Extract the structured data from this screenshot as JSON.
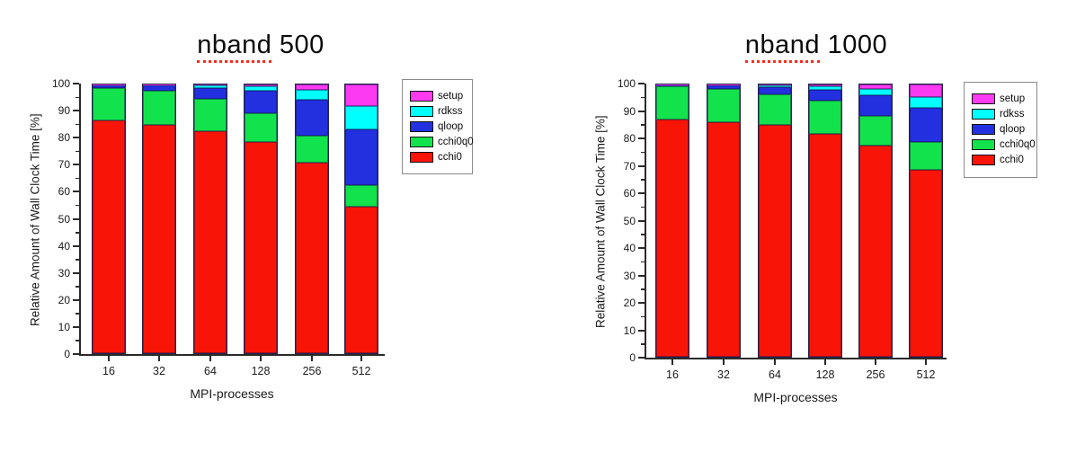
{
  "colors": {
    "setup": "#fb3af2",
    "rdkss": "#00ffff",
    "qloop": "#2230e0",
    "cchi0q0": "#12e34c",
    "cchi0": "#f91408",
    "axis": "#2a2a2a",
    "title_underline": "#ff2a1a"
  },
  "chart_data": [
    {
      "type": "bar",
      "stacked": true,
      "title": "nband 500",
      "title_word": "nband",
      "title_value": "500",
      "xlabel": "MPI-processes",
      "ylabel": "Relative Amount of Wall Clock Time [%]",
      "ylim": [
        0,
        100
      ],
      "yticks": [
        0,
        10,
        20,
        30,
        40,
        50,
        60,
        70,
        80,
        90,
        100
      ],
      "minor_ticks": [
        5,
        15,
        25,
        35,
        45,
        55,
        65,
        75,
        85,
        95
      ],
      "grid": false,
      "categories": [
        "16",
        "32",
        "64",
        "128",
        "256",
        "512"
      ],
      "series": [
        {
          "name": "cchi0",
          "color": "#f91408",
          "values": [
            86.5,
            85.0,
            82.5,
            78.5,
            71.0,
            54.6
          ]
        },
        {
          "name": "cchi0q0",
          "color": "#12e34c",
          "values": [
            12.2,
            12.5,
            12.3,
            10.8,
            9.8,
            8.1
          ]
        },
        {
          "name": "qloop",
          "color": "#2230e0",
          "values": [
            1.0,
            2.2,
            4.0,
            8.5,
            13.5,
            20.6
          ]
        },
        {
          "name": "rdkss",
          "color": "#00ffff",
          "values": [
            0.2,
            0.2,
            0.8,
            1.4,
            3.7,
            8.8
          ]
        },
        {
          "name": "setup",
          "color": "#fb3af2",
          "values": [
            0.1,
            0.1,
            0.4,
            0.8,
            2.0,
            7.9
          ]
        }
      ],
      "legend_position": "right",
      "legend": [
        {
          "label": "setup",
          "color": "#fb3af2"
        },
        {
          "label": "rdkss",
          "color": "#00ffff"
        },
        {
          "label": "qloop",
          "color": "#2230e0"
        },
        {
          "label": "cchi0q0",
          "color": "#12e34c"
        },
        {
          "label": "cchi0",
          "color": "#f91408"
        }
      ]
    },
    {
      "type": "bar",
      "stacked": true,
      "title": "nband 1000",
      "title_word": "nband",
      "title_value": "1000",
      "xlabel": "MPI-processes",
      "ylabel": "Relative Amount of Wall Clock Time [%]",
      "ylim": [
        0,
        100
      ],
      "yticks": [
        0,
        10,
        20,
        30,
        40,
        50,
        60,
        70,
        80,
        90,
        100
      ],
      "minor_ticks": [
        5,
        15,
        25,
        35,
        45,
        55,
        65,
        75,
        85,
        95
      ],
      "grid": false,
      "categories": [
        "16",
        "32",
        "64",
        "128",
        "256",
        "512"
      ],
      "series": [
        {
          "name": "cchi0",
          "color": "#f91408",
          "values": [
            87.0,
            86.0,
            85.0,
            82.0,
            77.5,
            68.5
          ]
        },
        {
          "name": "cchi0q0",
          "color": "#12e34c",
          "values": [
            12.4,
            12.4,
            11.5,
            12.0,
            11.0,
            10.5
          ]
        },
        {
          "name": "qloop",
          "color": "#2230e0",
          "values": [
            0.4,
            1.3,
            2.4,
            3.9,
            7.5,
            12.5
          ]
        },
        {
          "name": "rdkss",
          "color": "#00ffff",
          "values": [
            0.1,
            0.2,
            0.7,
            1.3,
            2.5,
            4.0
          ]
        },
        {
          "name": "setup",
          "color": "#fb3af2",
          "values": [
            0.1,
            0.1,
            0.4,
            0.8,
            1.5,
            4.5
          ]
        }
      ],
      "legend_position": "right",
      "legend": [
        {
          "label": "setup",
          "color": "#fb3af2"
        },
        {
          "label": "rdkss",
          "color": "#00ffff"
        },
        {
          "label": "qloop",
          "color": "#2230e0"
        },
        {
          "label": "cchi0q0",
          "color": "#12e34c"
        },
        {
          "label": "cchi0",
          "color": "#f91408"
        }
      ]
    }
  ]
}
